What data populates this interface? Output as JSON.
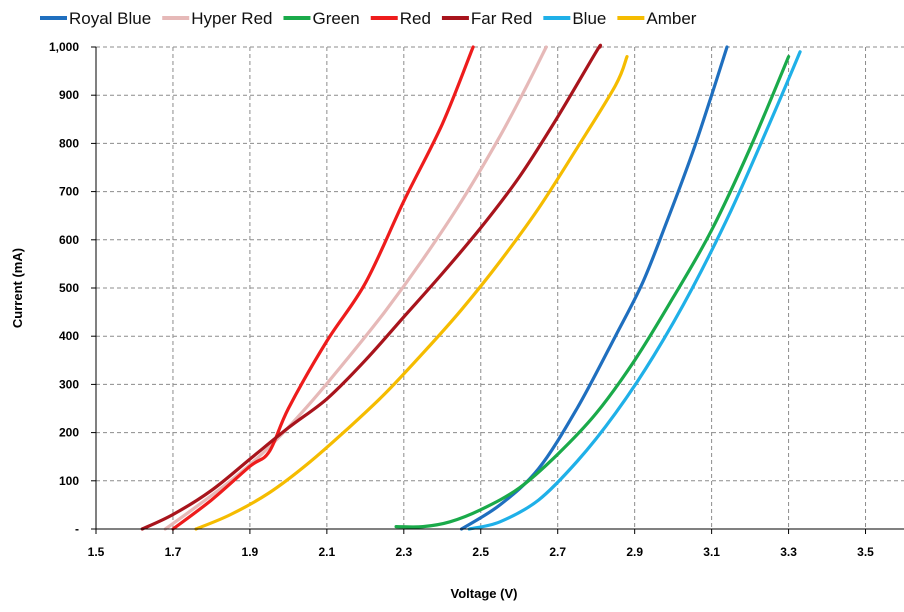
{
  "chart_data": {
    "type": "line",
    "title": "",
    "xlabel": "Voltage (V)",
    "ylabel": "Current (mA)",
    "xlim": [
      1.5,
      3.6
    ],
    "ylim": [
      0,
      1000
    ],
    "x_ticks": [
      1.5,
      1.7,
      1.9,
      2.1,
      2.3,
      2.5,
      2.7,
      2.9,
      3.1,
      3.3,
      3.5
    ],
    "x_tick_labels": [
      "1.5",
      "1.7",
      "1.9",
      "2.1",
      "2.3",
      "2.5",
      "2.7",
      "2.9",
      "3.1",
      "3.3",
      "3.5"
    ],
    "y_ticks": [
      0,
      100,
      200,
      300,
      400,
      500,
      600,
      700,
      800,
      900,
      1000
    ],
    "y_tick_labels": [
      "-",
      "100",
      "200",
      "300",
      "400",
      "500",
      "600",
      "700",
      "800",
      "900",
      "1,000"
    ],
    "grid": true,
    "grid_style": "dashed",
    "legend_position": "top",
    "series": [
      {
        "name": "Royal Blue",
        "color": "#1F6FBF",
        "points": [
          [
            2.45,
            0
          ],
          [
            2.55,
            50
          ],
          [
            2.65,
            125
          ],
          [
            2.75,
            250
          ],
          [
            2.85,
            400
          ],
          [
            2.92,
            510
          ],
          [
            2.98,
            630
          ],
          [
            3.05,
            780
          ],
          [
            3.1,
            900
          ],
          [
            3.14,
            1000
          ]
        ]
      },
      {
        "name": "Hyper Red",
        "color": "#E6B9B8",
        "points": [
          [
            1.68,
            0
          ],
          [
            1.75,
            40
          ],
          [
            1.85,
            100
          ],
          [
            1.95,
            170
          ],
          [
            2.05,
            255
          ],
          [
            2.15,
            350
          ],
          [
            2.25,
            450
          ],
          [
            2.35,
            560
          ],
          [
            2.45,
            680
          ],
          [
            2.55,
            815
          ],
          [
            2.62,
            920
          ],
          [
            2.67,
            1000
          ]
        ]
      },
      {
        "name": "Green",
        "color": "#1AAA4A",
        "points": [
          [
            2.28,
            5
          ],
          [
            2.35,
            5
          ],
          [
            2.42,
            15
          ],
          [
            2.5,
            40
          ],
          [
            2.6,
            85
          ],
          [
            2.7,
            155
          ],
          [
            2.8,
            240
          ],
          [
            2.9,
            350
          ],
          [
            3.0,
            480
          ],
          [
            3.1,
            620
          ],
          [
            3.2,
            790
          ],
          [
            3.3,
            980
          ]
        ]
      },
      {
        "name": "Red",
        "color": "#EE1C1C",
        "points": [
          [
            1.7,
            0
          ],
          [
            1.8,
            60
          ],
          [
            1.9,
            130
          ],
          [
            1.95,
            160
          ],
          [
            2.0,
            250
          ],
          [
            2.1,
            390
          ],
          [
            2.2,
            510
          ],
          [
            2.3,
            680
          ],
          [
            2.4,
            840
          ],
          [
            2.48,
            1000
          ]
        ]
      },
      {
        "name": "Far Red",
        "color": "#A8141C",
        "points": [
          [
            1.62,
            0
          ],
          [
            1.7,
            30
          ],
          [
            1.8,
            80
          ],
          [
            1.9,
            145
          ],
          [
            2.0,
            210
          ],
          [
            2.1,
            270
          ],
          [
            2.2,
            350
          ],
          [
            2.3,
            440
          ],
          [
            2.4,
            530
          ],
          [
            2.5,
            625
          ],
          [
            2.6,
            730
          ],
          [
            2.7,
            855
          ],
          [
            2.8,
            990
          ],
          [
            2.81,
            1000
          ]
        ]
      },
      {
        "name": "Blue",
        "color": "#1FB0E8",
        "points": [
          [
            2.47,
            0
          ],
          [
            2.55,
            15
          ],
          [
            2.65,
            60
          ],
          [
            2.75,
            140
          ],
          [
            2.85,
            240
          ],
          [
            2.95,
            360
          ],
          [
            3.05,
            500
          ],
          [
            3.15,
            660
          ],
          [
            3.25,
            840
          ],
          [
            3.33,
            990
          ]
        ]
      },
      {
        "name": "Amber",
        "color": "#F5BC00",
        "points": [
          [
            1.76,
            0
          ],
          [
            1.85,
            30
          ],
          [
            1.95,
            75
          ],
          [
            2.05,
            135
          ],
          [
            2.15,
            205
          ],
          [
            2.25,
            280
          ],
          [
            2.35,
            365
          ],
          [
            2.45,
            455
          ],
          [
            2.55,
            555
          ],
          [
            2.65,
            665
          ],
          [
            2.75,
            790
          ],
          [
            2.85,
            920
          ],
          [
            2.88,
            980
          ]
        ]
      }
    ]
  }
}
